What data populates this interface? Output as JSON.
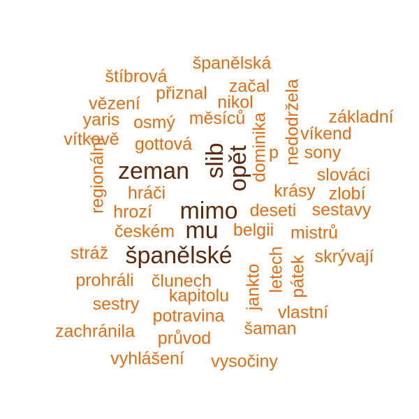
{
  "colors": {
    "dark": "#5a2a0c",
    "orange": "#e06d14"
  },
  "words": {
    "spanelska": "španělská",
    "stibrova": "štíbrová",
    "zacal": "začal",
    "priznal": "přiznal",
    "nikol": "nikol",
    "vezeni": "vězení",
    "nedodrzela": "nedodržela",
    "yaris": "yaris",
    "osmy": "osmý",
    "mesicu": "měsíců",
    "zakladni": "základní",
    "vitkove": "vítkově",
    "dominika": "dominika",
    "vikend": "víkend",
    "gottova": "gottová",
    "slib": "slib",
    "opet": "opět",
    "p": "p",
    "sony": "sony",
    "regionalni": "regionální",
    "zeman": "zeman",
    "slovaci": "slováci",
    "hraci": "hráči",
    "krasy": "krásy",
    "zlobi": "zlobí",
    "hrozi": "hrozí",
    "mimo": "mimo",
    "deseti": "deseti",
    "sestavy": "sestavy",
    "ceskem": "českém",
    "mu": "mu",
    "belgii": "belgii",
    "mistru": "mistrů",
    "straz": "stráž",
    "spanelske": "španělské",
    "skryvaji": "skrývají",
    "letech": "letech",
    "patek": "pátek",
    "prohrali": "prohráli",
    "clunech": "člunech",
    "jankto": "jankto",
    "kapitolu": "kapitolu",
    "sestry": "sestry",
    "vlastni": "vlastní",
    "potravina": "potravina",
    "zachranila": "zachránila",
    "saman": "šaman",
    "pruvod": "průvod",
    "vyhlaseni": "vyhlášení",
    "vysociny": "vysočiny"
  }
}
